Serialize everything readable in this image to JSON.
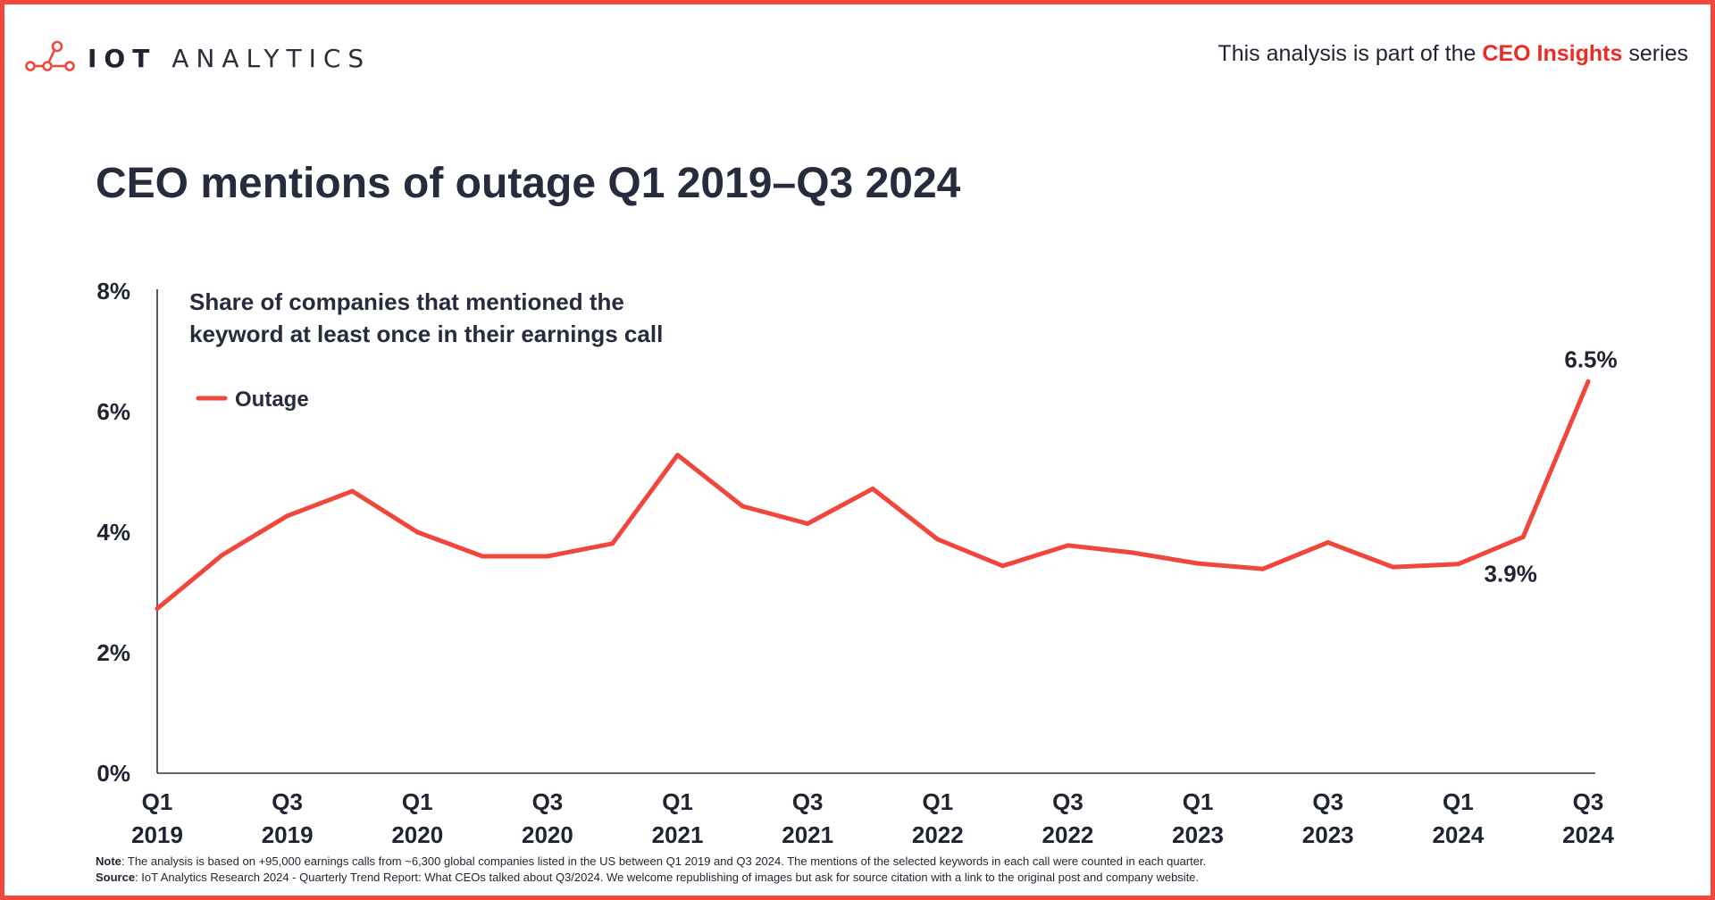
{
  "brand": {
    "logo_strong": "IOT",
    "logo_light": "ANALYTICS"
  },
  "header": {
    "series_prefix": "This analysis is part of the",
    "series_name": "CEO Insights",
    "series_suffix": "series"
  },
  "title": "CEO mentions of outage Q1 2019–Q3 2024",
  "chart_data": {
    "type": "line",
    "title": "CEO mentions of outage Q1 2019–Q3 2024",
    "subtitle_lines": [
      "Share of companies that mentioned the",
      "keyword at least once in their earnings call"
    ],
    "ylim": [
      0,
      8
    ],
    "yticks": [
      0,
      2,
      4,
      6,
      8
    ],
    "ytick_labels": [
      "0%",
      "2%",
      "4%",
      "6%",
      "8%"
    ],
    "x": [
      "Q1 2019",
      "Q2 2019",
      "Q3 2019",
      "Q4 2019",
      "Q1 2020",
      "Q2 2020",
      "Q3 2020",
      "Q4 2020",
      "Q1 2021",
      "Q2 2021",
      "Q3 2021",
      "Q4 2021",
      "Q1 2022",
      "Q2 2022",
      "Q3 2022",
      "Q4 2022",
      "Q1 2023",
      "Q2 2023",
      "Q3 2023",
      "Q4 2023",
      "Q1 2024",
      "Q2 2024",
      "Q3 2024"
    ],
    "xtick_labels": [
      {
        "index": 0,
        "quarter": "Q1",
        "year": "2019"
      },
      {
        "index": 2,
        "quarter": "Q3",
        "year": "2019"
      },
      {
        "index": 4,
        "quarter": "Q1",
        "year": "2020"
      },
      {
        "index": 6,
        "quarter": "Q3",
        "year": "2020"
      },
      {
        "index": 8,
        "quarter": "Q1",
        "year": "2021"
      },
      {
        "index": 10,
        "quarter": "Q3",
        "year": "2021"
      },
      {
        "index": 12,
        "quarter": "Q1",
        "year": "2022"
      },
      {
        "index": 14,
        "quarter": "Q3",
        "year": "2022"
      },
      {
        "index": 16,
        "quarter": "Q1",
        "year": "2023"
      },
      {
        "index": 18,
        "quarter": "Q3",
        "year": "2023"
      },
      {
        "index": 20,
        "quarter": "Q1",
        "year": "2024"
      },
      {
        "index": 22,
        "quarter": "Q3",
        "year": "2024"
      }
    ],
    "series": [
      {
        "name": "Outage",
        "color": "#f0463c",
        "values": [
          2.73,
          3.62,
          4.27,
          4.68,
          4.0,
          3.6,
          3.6,
          3.81,
          5.28,
          4.43,
          4.14,
          4.72,
          3.88,
          3.44,
          3.78,
          3.66,
          3.48,
          3.39,
          3.83,
          3.42,
          3.47,
          3.92,
          6.5
        ]
      }
    ],
    "annotations": [
      {
        "index": 21,
        "text": "3.9%"
      },
      {
        "index": 22,
        "text": "6.5%"
      }
    ],
    "legend": "top-left",
    "grid": false
  },
  "footnote": {
    "note_label": "Note",
    "note_text": ": The analysis is based on +95,000 earnings calls from ~6,300 global companies listed in the US between Q1 2019 and Q3 2024. The mentions of the selected keywords in each call were counted in each quarter.",
    "source_label": "Source",
    "source_text": ": IoT Analytics Research 2024 - Quarterly Trend Report: What CEOs talked about Q3/2024. We welcome republishing of images but ask for source citation with a link to the original post and company website."
  },
  "colors": {
    "accent": "#f0463c",
    "text": "#1f2430",
    "axis": "#2f3447"
  }
}
